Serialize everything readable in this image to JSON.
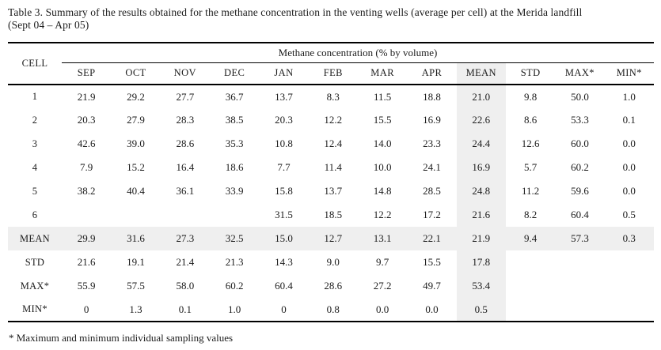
{
  "page": {
    "title_line1": "Table 3. Summary of the results obtained for the methane concentration in the venting wells (average per cell) at the Merida landfill",
    "title_line2": "(Sept 04 – Apr 05)",
    "footnote": "* Maximum and minimum individual sampling values"
  },
  "colors": {
    "shading": "#efefef",
    "rule": "#000000",
    "text": "#1c1c1c"
  },
  "table": {
    "corner_header": "CELL",
    "span_header": "Methane concentration (% by volume)",
    "columns": [
      "SEP",
      "OCT",
      "NOV",
      "DEC",
      "JAN",
      "FEB",
      "MAR",
      "APR",
      "MEAN",
      "STD",
      "MAX*",
      "MIN*"
    ],
    "shaded_col_index": 8,
    "rows": [
      {
        "label": "1",
        "shaded": false,
        "values": [
          "21.9",
          "29.2",
          "27.7",
          "36.7",
          "13.7",
          "8.3",
          "11.5",
          "18.8",
          "21.0",
          "9.8",
          "50.0",
          "1.0"
        ]
      },
      {
        "label": "2",
        "shaded": false,
        "values": [
          "20.3",
          "27.9",
          "28.3",
          "38.5",
          "20.3",
          "12.2",
          "15.5",
          "16.9",
          "22.6",
          "8.6",
          "53.3",
          "0.1"
        ]
      },
      {
        "label": "3",
        "shaded": false,
        "values": [
          "42.6",
          "39.0",
          "28.6",
          "35.3",
          "10.8",
          "12.4",
          "14.0",
          "23.3",
          "24.4",
          "12.6",
          "60.0",
          "0.0"
        ]
      },
      {
        "label": "4",
        "shaded": false,
        "values": [
          "7.9",
          "15.2",
          "16.4",
          "18.6",
          "7.7",
          "11.4",
          "10.0",
          "24.1",
          "16.9",
          "5.7",
          "60.2",
          "0.0"
        ]
      },
      {
        "label": "5",
        "shaded": false,
        "values": [
          "38.2",
          "40.4",
          "36.1",
          "33.9",
          "15.8",
          "13.7",
          "14.8",
          "28.5",
          "24.8",
          "11.2",
          "59.6",
          "0.0"
        ]
      },
      {
        "label": "6",
        "shaded": false,
        "values": [
          "",
          "",
          "",
          "",
          "31.5",
          "18.5",
          "12.2",
          "17.2",
          "21.6",
          "8.2",
          "60.4",
          "0.5"
        ]
      },
      {
        "label": "MEAN",
        "shaded": true,
        "values": [
          "29.9",
          "31.6",
          "27.3",
          "32.5",
          "15.0",
          "12.7",
          "13.1",
          "22.1",
          "21.9",
          "9.4",
          "57.3",
          "0.3"
        ]
      },
      {
        "label": "STD",
        "shaded": false,
        "values": [
          "21.6",
          "19.1",
          "21.4",
          "21.3",
          "14.3",
          "9.0",
          "9.7",
          "15.5",
          "17.8",
          "",
          "",
          ""
        ]
      },
      {
        "label": "MAX*",
        "shaded": false,
        "values": [
          "55.9",
          "57.5",
          "58.0",
          "60.2",
          "60.4",
          "28.6",
          "27.2",
          "49.7",
          "53.4",
          "",
          "",
          ""
        ]
      },
      {
        "label": "MIN*",
        "shaded": false,
        "values": [
          "0",
          "1.3",
          "0.1",
          "1.0",
          "0",
          "0.8",
          "0.0",
          "0.0",
          "0.5",
          "",
          "",
          ""
        ]
      }
    ]
  },
  "chart_data": {
    "type": "table",
    "title": "Table 3. Summary of the results obtained for the methane concentration in the venting wells (average per cell) at the Merida landfill (Sept 04 – Apr 05)",
    "columns": [
      "CELL",
      "SEP",
      "OCT",
      "NOV",
      "DEC",
      "JAN",
      "FEB",
      "MAR",
      "APR",
      "MEAN",
      "STD",
      "MAX*",
      "MIN*"
    ],
    "rows": [
      [
        "1",
        "21.9",
        "29.2",
        "27.7",
        "36.7",
        "13.7",
        "8.3",
        "11.5",
        "18.8",
        "21.0",
        "9.8",
        "50.0",
        "1.0"
      ],
      [
        "2",
        "20.3",
        "27.9",
        "28.3",
        "38.5",
        "20.3",
        "12.2",
        "15.5",
        "16.9",
        "22.6",
        "8.6",
        "53.3",
        "0.1"
      ],
      [
        "3",
        "42.6",
        "39.0",
        "28.6",
        "35.3",
        "10.8",
        "12.4",
        "14.0",
        "23.3",
        "24.4",
        "12.6",
        "60.0",
        "0.0"
      ],
      [
        "4",
        "7.9",
        "15.2",
        "16.4",
        "18.6",
        "7.7",
        "11.4",
        "10.0",
        "24.1",
        "16.9",
        "5.7",
        "60.2",
        "0.0"
      ],
      [
        "5",
        "38.2",
        "40.4",
        "36.1",
        "33.9",
        "15.8",
        "13.7",
        "14.8",
        "28.5",
        "24.8",
        "11.2",
        "59.6",
        "0.0"
      ],
      [
        "6",
        "",
        "",
        "",
        "",
        "31.5",
        "18.5",
        "12.2",
        "17.2",
        "21.6",
        "8.2",
        "60.4",
        "0.5"
      ],
      [
        "MEAN",
        "29.9",
        "31.6",
        "27.3",
        "32.5",
        "15.0",
        "12.7",
        "13.1",
        "22.1",
        "21.9",
        "9.4",
        "57.3",
        "0.3"
      ],
      [
        "STD",
        "21.6",
        "19.1",
        "21.4",
        "21.3",
        "14.3",
        "9.0",
        "9.7",
        "15.5",
        "17.8",
        "",
        "",
        ""
      ],
      [
        "MAX*",
        "55.9",
        "57.5",
        "58.0",
        "60.2",
        "60.4",
        "28.6",
        "27.2",
        "49.7",
        "53.4",
        "",
        "",
        ""
      ],
      [
        "MIN*",
        "0",
        "1.3",
        "0.1",
        "1.0",
        "0",
        "0.8",
        "0.0",
        "0.0",
        "0.5",
        "",
        "",
        ""
      ]
    ],
    "footnote": "* Maximum and minimum individual sampling values"
  }
}
